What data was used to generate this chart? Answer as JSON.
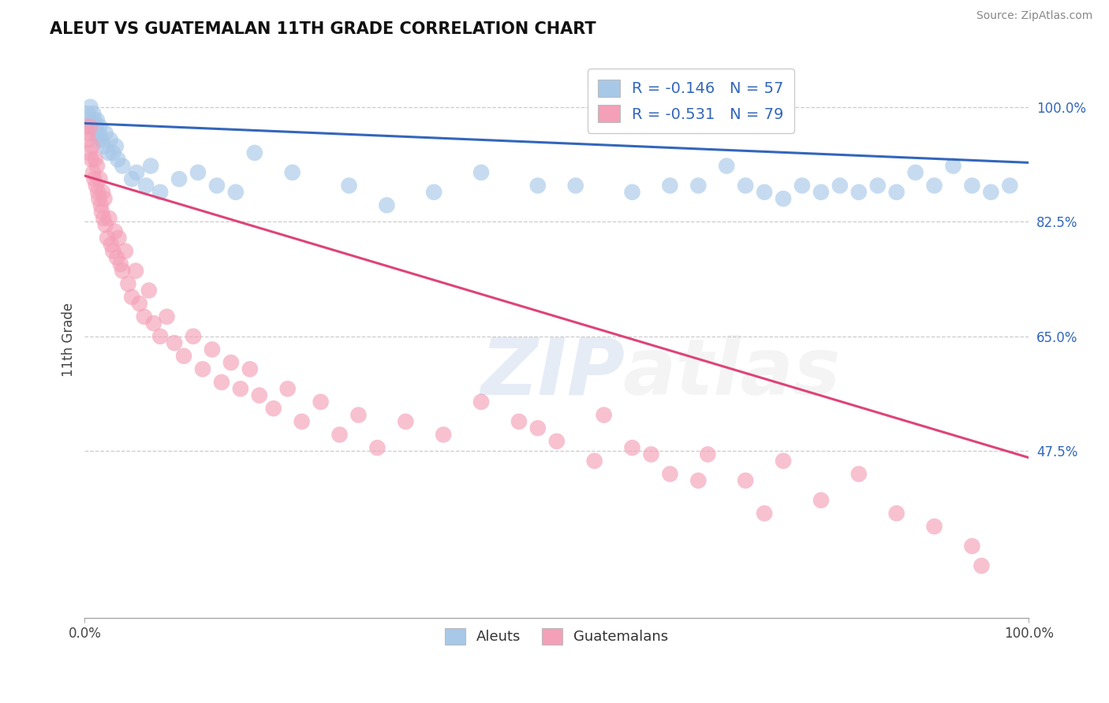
{
  "title": "ALEUT VS GUATEMALAN 11TH GRADE CORRELATION CHART",
  "source": "Source: ZipAtlas.com",
  "ylabel": "11th Grade",
  "yticks": [
    0.475,
    0.65,
    0.825,
    1.0
  ],
  "ytick_labels": [
    "47.5%",
    "65.0%",
    "82.5%",
    "100.0%"
  ],
  "xlim": [
    0.0,
    1.0
  ],
  "ylim": [
    0.22,
    1.07
  ],
  "aleut_R": -0.146,
  "aleut_N": 57,
  "guatemalan_R": -0.531,
  "guatemalan_N": 79,
  "aleut_color": "#a8c8e8",
  "guatemalan_color": "#f4a0b8",
  "aleut_line_color": "#3366bb",
  "guatemalan_line_color": "#dd4477",
  "aleut_line_start_y": 0.975,
  "aleut_line_end_y": 0.915,
  "guatemalan_line_start_y": 0.895,
  "guatemalan_line_end_y": 0.465,
  "aleut_x": [
    0.003,
    0.005,
    0.006,
    0.008,
    0.009,
    0.01,
    0.011,
    0.012,
    0.013,
    0.014,
    0.015,
    0.016,
    0.018,
    0.02,
    0.022,
    0.025,
    0.027,
    0.03,
    0.033,
    0.035,
    0.04,
    0.05,
    0.055,
    0.065,
    0.07,
    0.08,
    0.1,
    0.12,
    0.14,
    0.16,
    0.18,
    0.22,
    0.28,
    0.32,
    0.37,
    0.42,
    0.48,
    0.52,
    0.58,
    0.62,
    0.65,
    0.68,
    0.7,
    0.72,
    0.74,
    0.76,
    0.78,
    0.8,
    0.82,
    0.84,
    0.86,
    0.88,
    0.9,
    0.92,
    0.94,
    0.96,
    0.98
  ],
  "aleut_y": [
    0.99,
    0.98,
    1.0,
    0.97,
    0.99,
    0.98,
    0.96,
    0.97,
    0.98,
    0.95,
    0.96,
    0.97,
    0.95,
    0.94,
    0.96,
    0.93,
    0.95,
    0.93,
    0.94,
    0.92,
    0.91,
    0.89,
    0.9,
    0.88,
    0.91,
    0.87,
    0.89,
    0.9,
    0.88,
    0.87,
    0.93,
    0.9,
    0.88,
    0.85,
    0.87,
    0.9,
    0.88,
    0.88,
    0.87,
    0.88,
    0.88,
    0.91,
    0.88,
    0.87,
    0.86,
    0.88,
    0.87,
    0.88,
    0.87,
    0.88,
    0.87,
    0.9,
    0.88,
    0.91,
    0.88,
    0.87,
    0.88
  ],
  "guatemalan_x": [
    0.002,
    0.003,
    0.004,
    0.005,
    0.006,
    0.007,
    0.008,
    0.009,
    0.01,
    0.011,
    0.012,
    0.013,
    0.014,
    0.015,
    0.016,
    0.017,
    0.018,
    0.019,
    0.02,
    0.021,
    0.022,
    0.024,
    0.026,
    0.028,
    0.03,
    0.032,
    0.034,
    0.036,
    0.038,
    0.04,
    0.043,
    0.046,
    0.05,
    0.054,
    0.058,
    0.063,
    0.068,
    0.073,
    0.08,
    0.087,
    0.095,
    0.105,
    0.115,
    0.125,
    0.135,
    0.145,
    0.155,
    0.165,
    0.175,
    0.185,
    0.2,
    0.215,
    0.23,
    0.25,
    0.27,
    0.29,
    0.31,
    0.34,
    0.38,
    0.42,
    0.46,
    0.5,
    0.54,
    0.58,
    0.62,
    0.66,
    0.7,
    0.74,
    0.78,
    0.82,
    0.86,
    0.9,
    0.94,
    0.48,
    0.55,
    0.6,
    0.65,
    0.72,
    0.95
  ],
  "guatemalan_y": [
    0.97,
    0.96,
    0.95,
    0.93,
    0.97,
    0.92,
    0.94,
    0.9,
    0.89,
    0.92,
    0.88,
    0.91,
    0.87,
    0.86,
    0.89,
    0.85,
    0.84,
    0.87,
    0.83,
    0.86,
    0.82,
    0.8,
    0.83,
    0.79,
    0.78,
    0.81,
    0.77,
    0.8,
    0.76,
    0.75,
    0.78,
    0.73,
    0.71,
    0.75,
    0.7,
    0.68,
    0.72,
    0.67,
    0.65,
    0.68,
    0.64,
    0.62,
    0.65,
    0.6,
    0.63,
    0.58,
    0.61,
    0.57,
    0.6,
    0.56,
    0.54,
    0.57,
    0.52,
    0.55,
    0.5,
    0.53,
    0.48,
    0.52,
    0.5,
    0.55,
    0.52,
    0.49,
    0.46,
    0.48,
    0.44,
    0.47,
    0.43,
    0.46,
    0.4,
    0.44,
    0.38,
    0.36,
    0.33,
    0.51,
    0.53,
    0.47,
    0.43,
    0.38,
    0.3
  ]
}
